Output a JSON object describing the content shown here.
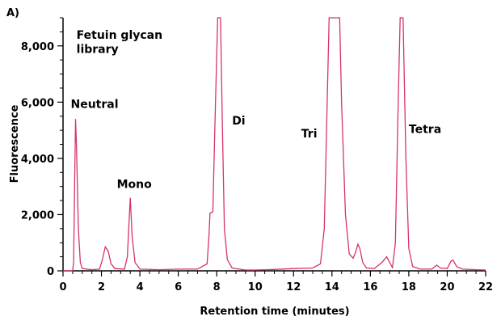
{
  "chart_data": {
    "type": "line",
    "panel_label": "A)",
    "xlabel": "Retention time (minutes)",
    "ylabel": "Fluorescence",
    "xlim": [
      0,
      22
    ],
    "ylim": [
      0,
      9000
    ],
    "x_ticks": [
      0,
      2,
      4,
      6,
      8,
      10,
      12,
      14,
      16,
      18,
      20,
      22
    ],
    "y_ticks": [
      0,
      2000,
      4000,
      6000,
      8000
    ],
    "y_tick_labels": [
      "0",
      "2,000",
      "4,000",
      "6,000",
      "8,000"
    ],
    "grid": false,
    "line_color": "#d6336c",
    "annotations": [
      {
        "text": "Fetuin glycan",
        "x": 0.7,
        "y": 8250
      },
      {
        "text": "library",
        "x": 0.7,
        "y": 7750
      },
      {
        "text": "Neutral",
        "x": 0.4,
        "y": 5800
      },
      {
        "text": "Mono",
        "x": 2.8,
        "y": 2950
      },
      {
        "text": "Di",
        "x": 8.8,
        "y": 5200
      },
      {
        "text": "Tri",
        "x": 12.4,
        "y": 4750
      },
      {
        "text": "Tetra",
        "x": 18.0,
        "y": 4900
      }
    ],
    "series": [
      {
        "points": [
          [
            0,
            0
          ],
          [
            0.5,
            0
          ],
          [
            0.55,
            300
          ],
          [
            0.6,
            3000
          ],
          [
            0.65,
            5400
          ],
          [
            0.7,
            4500
          ],
          [
            0.8,
            1500
          ],
          [
            0.9,
            300
          ],
          [
            1.0,
            80
          ],
          [
            1.5,
            40
          ],
          [
            1.9,
            60
          ],
          [
            2.05,
            400
          ],
          [
            2.2,
            850
          ],
          [
            2.35,
            700
          ],
          [
            2.5,
            250
          ],
          [
            2.7,
            80
          ],
          [
            3.2,
            60
          ],
          [
            3.35,
            500
          ],
          [
            3.5,
            2600
          ],
          [
            3.6,
            1200
          ],
          [
            3.75,
            300
          ],
          [
            4.0,
            60
          ],
          [
            5.0,
            40
          ],
          [
            6.0,
            60
          ],
          [
            7.0,
            60
          ],
          [
            7.5,
            250
          ],
          [
            7.6,
            1300
          ],
          [
            7.65,
            2050
          ],
          [
            7.8,
            2100
          ],
          [
            7.9,
            5000
          ],
          [
            8.05,
            9000
          ],
          [
            8.2,
            9000
          ],
          [
            8.3,
            5000
          ],
          [
            8.4,
            1500
          ],
          [
            8.55,
            400
          ],
          [
            8.8,
            100
          ],
          [
            9.5,
            30
          ],
          [
            10.0,
            30
          ],
          [
            11.0,
            50
          ],
          [
            12.0,
            80
          ],
          [
            13.0,
            100
          ],
          [
            13.4,
            250
          ],
          [
            13.6,
            1500
          ],
          [
            13.75,
            6000
          ],
          [
            13.85,
            9000
          ],
          [
            14.4,
            9000
          ],
          [
            14.5,
            6000
          ],
          [
            14.7,
            2000
          ],
          [
            14.9,
            600
          ],
          [
            15.1,
            450
          ],
          [
            15.25,
            700
          ],
          [
            15.35,
            950
          ],
          [
            15.45,
            800
          ],
          [
            15.6,
            300
          ],
          [
            15.8,
            100
          ],
          [
            16.2,
            80
          ],
          [
            16.6,
            300
          ],
          [
            16.85,
            500
          ],
          [
            17.0,
            300
          ],
          [
            17.15,
            120
          ],
          [
            17.3,
            1000
          ],
          [
            17.45,
            6000
          ],
          [
            17.55,
            9000
          ],
          [
            17.7,
            9000
          ],
          [
            17.85,
            4000
          ],
          [
            18.0,
            800
          ],
          [
            18.2,
            150
          ],
          [
            18.6,
            60
          ],
          [
            19.2,
            60
          ],
          [
            19.45,
            200
          ],
          [
            19.65,
            100
          ],
          [
            20.0,
            80
          ],
          [
            20.2,
            350
          ],
          [
            20.3,
            380
          ],
          [
            20.5,
            150
          ],
          [
            20.8,
            60
          ],
          [
            21.5,
            40
          ],
          [
            22.0,
            30
          ]
        ]
      }
    ]
  }
}
